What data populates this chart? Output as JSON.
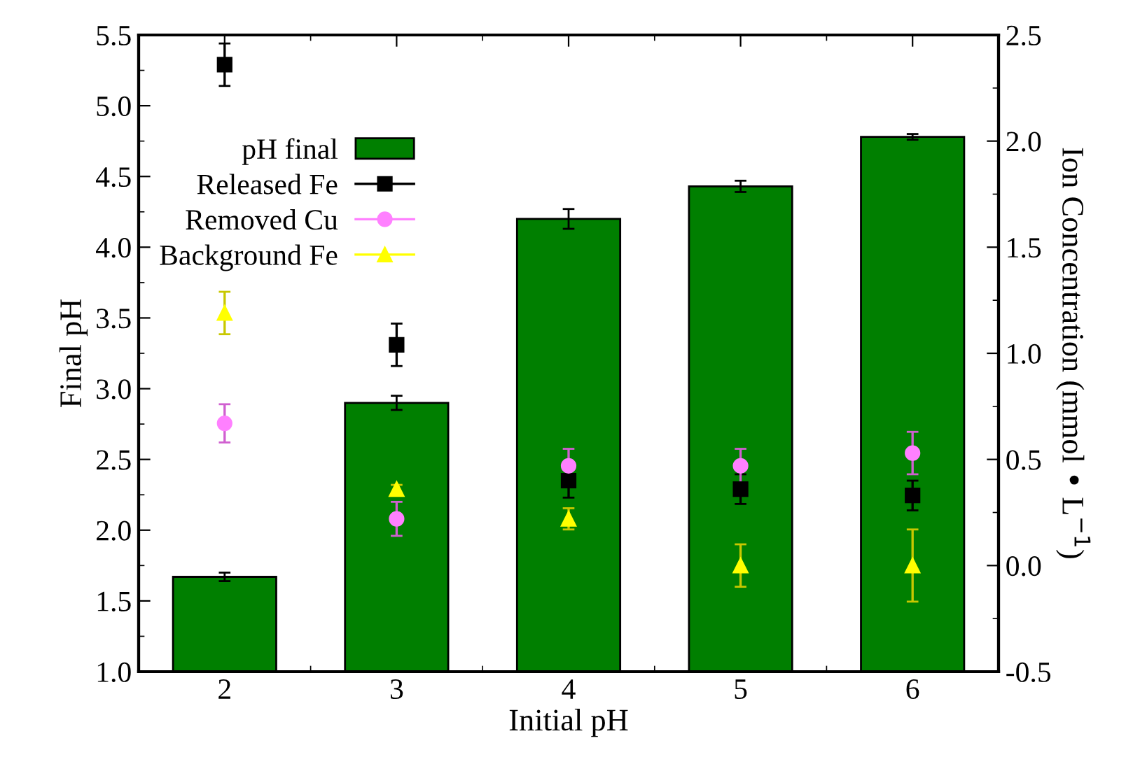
{
  "chart_data": {
    "type": "bar",
    "xlabel": "Initial pH",
    "ylabel": "Final pH",
    "y2label": "Ion Concentration (mmol • L$^{−1}$)",
    "x": [
      2,
      3,
      4,
      5,
      6
    ],
    "xlim": [
      1.5,
      6.5
    ],
    "xticks": [
      2,
      3,
      4,
      5,
      6
    ],
    "ylim": [
      1.0,
      5.5
    ],
    "yticks": [
      {
        "value": 1,
        "label": "1.0"
      },
      1.5,
      {
        "value": 2,
        "label": "2.0"
      },
      2.5,
      {
        "value": 3,
        "label": "3.0"
      },
      3.5,
      {
        "value": 4,
        "label": "4.0"
      },
      4.5,
      {
        "value": 5,
        "label": "5.0"
      },
      5.5
    ],
    "y2lim": [
      -0.5,
      2.5
    ],
    "y2ticks": [
      -0.5,
      {
        "value": 0,
        "label": "0.0"
      },
      0.5,
      {
        "value": 1,
        "label": "1.0"
      },
      1.5,
      {
        "value": 2,
        "label": "2.0"
      },
      2.5
    ],
    "legend": "top left",
    "grid": false,
    "series": [
      {
        "name": "pH final",
        "color": "#007f00",
        "values": [
          1.67,
          2.9,
          4.2,
          4.43,
          4.78
        ],
        "errors": [
          0.03,
          0.05,
          0.07,
          0.04,
          0.02
        ]
      },
      {
        "name": "Released Fe",
        "type": "scatter",
        "axis": "y2",
        "marker": "square",
        "color": "#000000",
        "values": [
          2.36,
          1.04,
          0.4,
          0.36,
          0.33
        ],
        "errors": [
          0.1,
          0.1,
          0.08,
          0.07,
          0.07
        ]
      },
      {
        "name": "Removed Cu",
        "type": "scatter",
        "axis": "y2",
        "marker": "circle",
        "color": "#ff80ff",
        "values": [
          0.67,
          0.22,
          0.47,
          0.47,
          0.53
        ],
        "errors": [
          0.09,
          0.08,
          0.08,
          0.08,
          0.1
        ]
      },
      {
        "name": "Background Fe",
        "type": "scatter",
        "axis": "y2",
        "marker": "triangle",
        "color": "#ffff00",
        "values": [
          1.19,
          0.36,
          0.22,
          0.0,
          0.0
        ],
        "errors": [
          0.1,
          0.02,
          0.05,
          0.1,
          0.17
        ]
      }
    ]
  }
}
